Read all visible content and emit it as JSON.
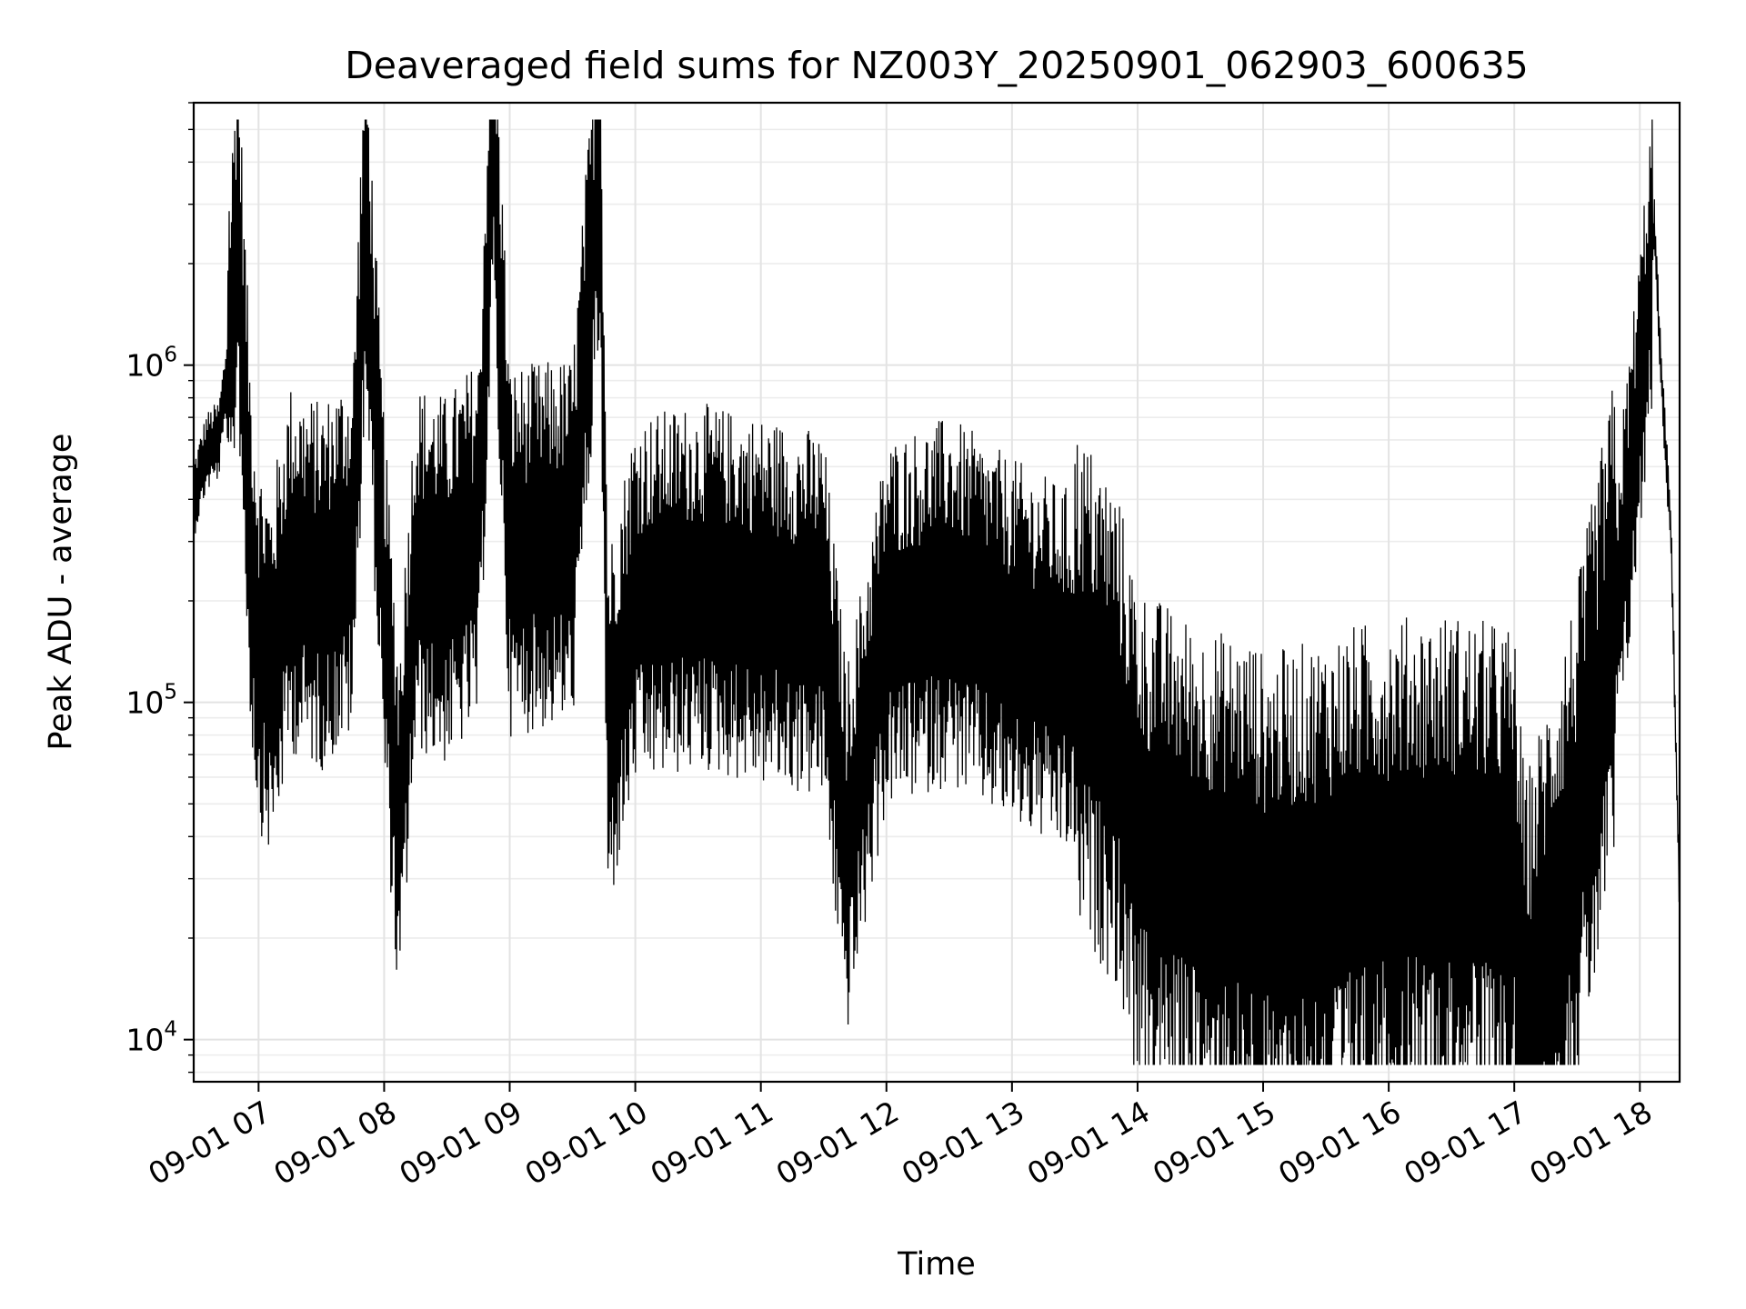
{
  "chart_data": {
    "type": "line",
    "title": "Deaveraged field sums for NZ003Y_20250901_062903_600635",
    "xlabel": "Time",
    "ylabel": "Peak ADU - average",
    "yscale": "log",
    "xlim": [
      "2025-09-01 06:29",
      "2025-09-01 18:19"
    ],
    "ylim": [
      7500,
      6000000
    ],
    "x_ticks": [
      {
        "hour": 7,
        "label": "09-01 07"
      },
      {
        "hour": 8,
        "label": "09-01 08"
      },
      {
        "hour": 9,
        "label": "09-01 09"
      },
      {
        "hour": 10,
        "label": "09-01 10"
      },
      {
        "hour": 11,
        "label": "09-01 11"
      },
      {
        "hour": 12,
        "label": "09-01 12"
      },
      {
        "hour": 13,
        "label": "09-01 13"
      },
      {
        "hour": 14,
        "label": "09-01 14"
      },
      {
        "hour": 15,
        "label": "09-01 15"
      },
      {
        "hour": 16,
        "label": "09-01 16"
      },
      {
        "hour": 17,
        "label": "09-01 17"
      },
      {
        "hour": 18,
        "label": "09-01 18"
      }
    ],
    "y_ticks": [
      {
        "value": 10000,
        "base": "10",
        "exp": "4"
      },
      {
        "value": 100000,
        "base": "10",
        "exp": "5"
      },
      {
        "value": 1000000,
        "base": "10",
        "exp": "6"
      }
    ],
    "grid": true,
    "line_color": "#000000",
    "series": [
      {
        "x": [
          "2025-09-01 06:29",
          "2025-09-01 06:35",
          "2025-09-01 06:41",
          "2025-09-01 06:47",
          "2025-09-01 06:50",
          "2025-09-01 06:53",
          "2025-09-01 06:56",
          "2025-09-01 07:00",
          "2025-09-01 07:06",
          "2025-09-01 07:15",
          "2025-09-01 07:30",
          "2025-09-01 07:45",
          "2025-09-01 07:51",
          "2025-09-01 08:00",
          "2025-09-01 08:07",
          "2025-09-01 08:15",
          "2025-09-01 08:30",
          "2025-09-01 08:45",
          "2025-09-01 08:52",
          "2025-09-01 09:00",
          "2025-09-01 09:30",
          "2025-09-01 09:43",
          "2025-09-01 09:47",
          "2025-09-01 10:00",
          "2025-09-01 10:30",
          "2025-09-01 11:00",
          "2025-09-01 11:30",
          "2025-09-01 11:41",
          "2025-09-01 12:00",
          "2025-09-01 12:30",
          "2025-09-01 13:00",
          "2025-09-01 13:30",
          "2025-09-01 13:50",
          "2025-09-01 14:00",
          "2025-09-01 14:30",
          "2025-09-01 14:55",
          "2025-09-01 15:00",
          "2025-09-01 15:30",
          "2025-09-01 15:40",
          "2025-09-01 16:00",
          "2025-09-01 16:30",
          "2025-09-01 17:00",
          "2025-09-01 17:05",
          "2025-09-01 17:30",
          "2025-09-01 17:50",
          "2025-09-01 18:00",
          "2025-09-01 18:07",
          "2025-09-01 18:10",
          "2025-09-01 18:15",
          "2025-09-01 18:19"
        ],
        "y": [
          400000,
          550000,
          600000,
          1200000,
          2800000,
          900000,
          300000,
          150000,
          120000,
          250000,
          220000,
          280000,
          2900000,
          200000,
          40000,
          250000,
          230000,
          300000,
          5000000,
          280000,
          300000,
          4000000,
          80000,
          200000,
          220000,
          200000,
          180000,
          36000,
          170000,
          200000,
          150000,
          120000,
          80000,
          40000,
          30000,
          28000,
          25000,
          28000,
          30000,
          32000,
          33000,
          30000,
          10500,
          40000,
          200000,
          800000,
          2600000,
          1000000,
          300000,
          25000
        ]
      }
    ]
  }
}
